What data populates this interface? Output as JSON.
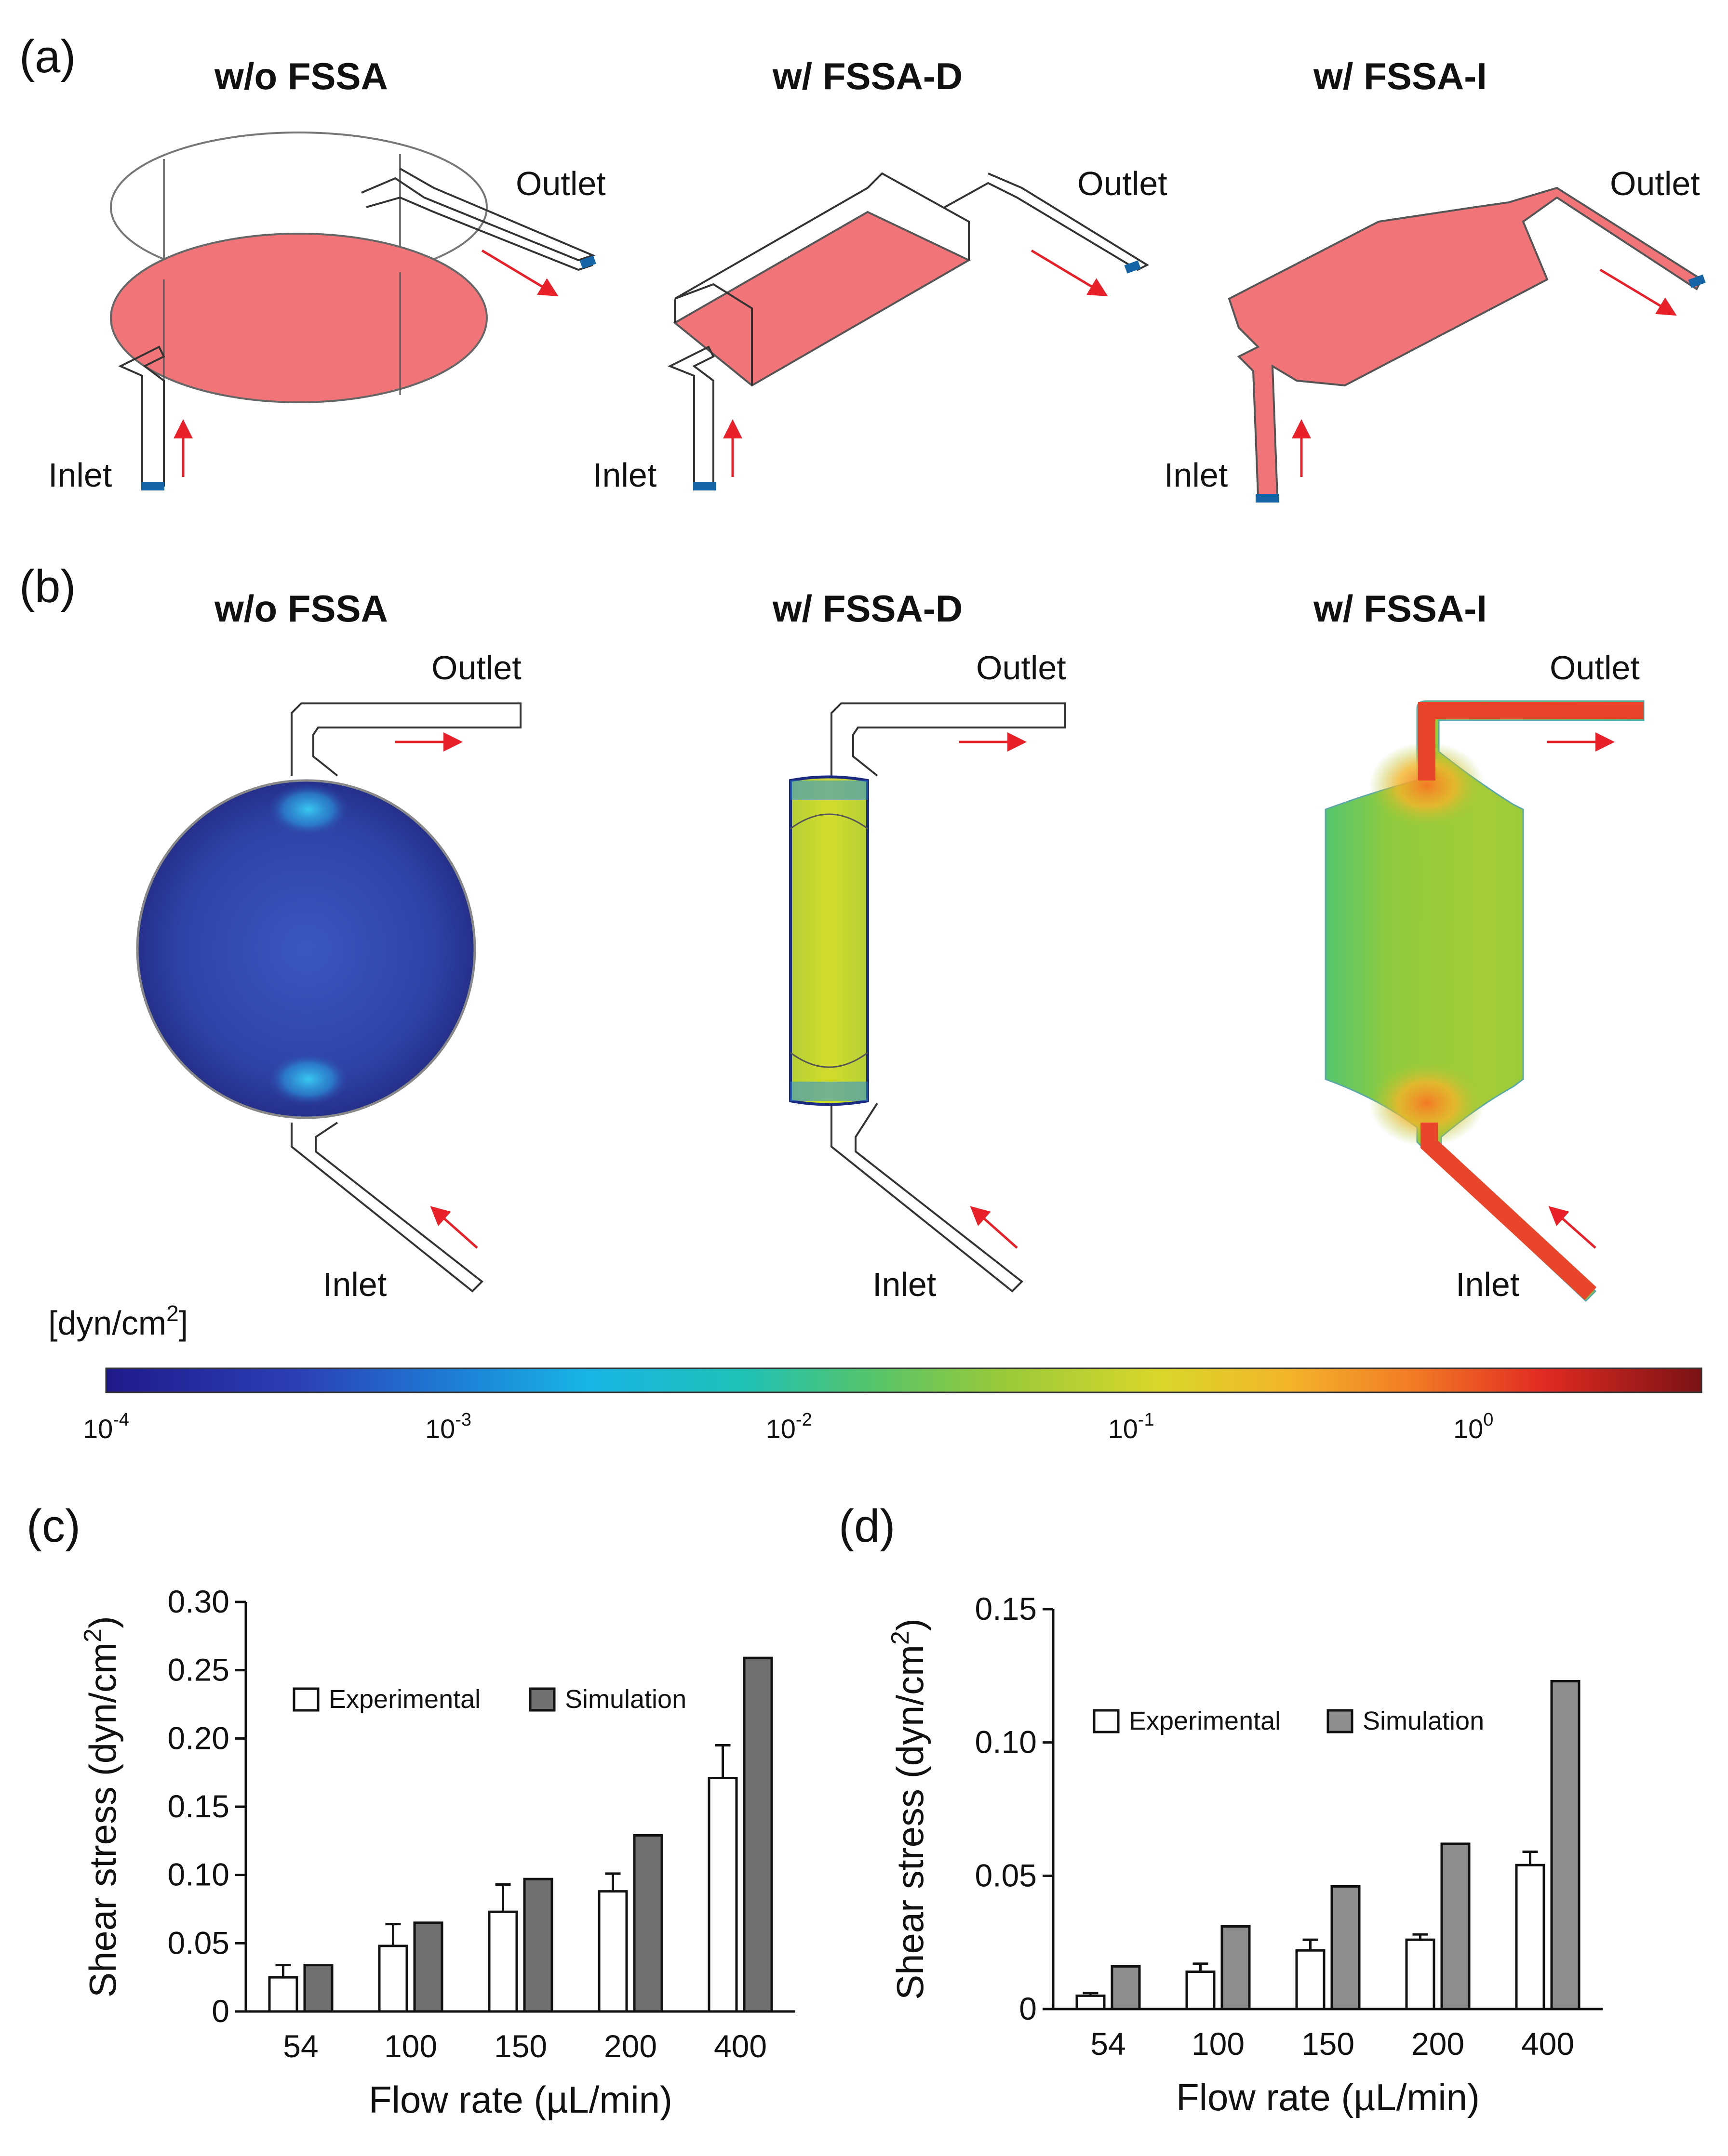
{
  "panels": {
    "a": {
      "label": "(a)",
      "titles": [
        "w/o FSSA",
        "w/ FSSA-D",
        "w/ FSSA-I"
      ],
      "inlet_label": "Inlet",
      "outlet_label": "Outlet"
    },
    "b": {
      "label": "(b)",
      "titles": [
        "w/o FSSA",
        "w/ FSSA-D",
        "w/ FSSA-I"
      ],
      "inlet_label": "Inlet",
      "outlet_label": "Outlet"
    },
    "c": {
      "label": "(c)"
    },
    "d": {
      "label": "(d)"
    }
  },
  "colorbar": {
    "unit": "[dyn/cm",
    "unit_sup": "2",
    "unit_close": "]",
    "ticks": [
      {
        "base": "10",
        "exp": "-4"
      },
      {
        "base": "10",
        "exp": "-3"
      },
      {
        "base": "10",
        "exp": "-2"
      },
      {
        "base": "10",
        "exp": "-1"
      },
      {
        "base": "10",
        "exp": "0"
      }
    ],
    "colormap": "jet"
  },
  "colors": {
    "experimental": "#ffffff",
    "simulation_c": "#707070",
    "simulation_d": "#8e8e8e",
    "fluid_fill": "#f07478",
    "port_blue": "#1565a6",
    "arrow_red": "#e8202a"
  },
  "chart_data": [
    {
      "type": "bar",
      "panel": "(c)",
      "categories": [
        "54",
        "100",
        "150",
        "200",
        "400"
      ],
      "xlabel": "Flow rate (µL/min)",
      "ylabel": "Shear stress (dyn/cm",
      "ylabel_sup": "2",
      "ylabel_close": ")",
      "ylim": [
        0,
        0.3
      ],
      "yticks": [
        "0",
        "0.05",
        "0.10",
        "0.15",
        "0.20",
        "0.25",
        "0.30"
      ],
      "legend_position": "top-left",
      "series": [
        {
          "name": "Experimental",
          "values": [
            0.025,
            0.048,
            0.073,
            0.088,
            0.171
          ],
          "errors": [
            0.009,
            0.016,
            0.02,
            0.013,
            0.024
          ]
        },
        {
          "name": "Simulation",
          "values": [
            0.034,
            0.065,
            0.097,
            0.129,
            0.259
          ]
        }
      ]
    },
    {
      "type": "bar",
      "panel": "(d)",
      "categories": [
        "54",
        "100",
        "150",
        "200",
        "400"
      ],
      "xlabel": "Flow rate (µL/min)",
      "ylabel": "Shear stress (dyn/cm",
      "ylabel_sup": "2",
      "ylabel_close": ")",
      "ylim": [
        0,
        0.15
      ],
      "yticks": [
        "0",
        "0.05",
        "0.10",
        "0.15"
      ],
      "legend_position": "top-left",
      "series": [
        {
          "name": "Experimental",
          "values": [
            0.005,
            0.014,
            0.022,
            0.026,
            0.054
          ],
          "errors": [
            0.001,
            0.003,
            0.004,
            0.002,
            0.005
          ]
        },
        {
          "name": "Simulation",
          "values": [
            0.016,
            0.031,
            0.046,
            0.062,
            0.123
          ]
        }
      ]
    }
  ]
}
